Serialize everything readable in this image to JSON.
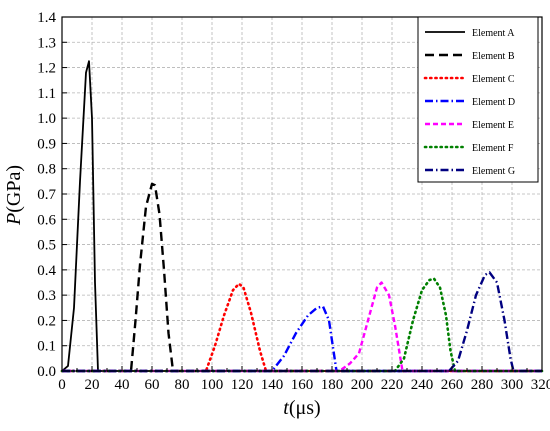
{
  "chart_data": {
    "type": "line",
    "xlabel": {
      "italic": "t",
      "unit": "(μs)"
    },
    "ylabel": {
      "italic": "P",
      "unit": "(GPa)"
    },
    "xlim": [
      0,
      320
    ],
    "ylim": [
      0,
      1.4
    ],
    "xticks": [
      "0",
      "20",
      "40",
      "60",
      "80",
      "100",
      "120",
      "140",
      "160",
      "180",
      "200",
      "220",
      "240",
      "260",
      "280",
      "300",
      "320"
    ],
    "yticks": [
      "0.0",
      "0.1",
      "0.2",
      "0.3",
      "0.4",
      "0.5",
      "0.6",
      "0.7",
      "0.8",
      "0.9",
      "1.0",
      "1.1",
      "1.2",
      "1.3",
      "1.4"
    ],
    "grid": true,
    "legend_position": "top-right",
    "series": [
      {
        "name": "Element A",
        "color": "#000000",
        "dash": "solid",
        "x": [
          0,
          4,
          8,
          12,
          16,
          18,
          20,
          22,
          24,
          320
        ],
        "y": [
          0,
          0.02,
          0.25,
          0.75,
          1.18,
          1.225,
          1.0,
          0.35,
          0,
          0
        ]
      },
      {
        "name": "Element B",
        "color": "#000000",
        "dash": "long-dash",
        "x": [
          0,
          46,
          49,
          52,
          56,
          60,
          62,
          65,
          68,
          71,
          74,
          320
        ],
        "y": [
          0,
          0,
          0.2,
          0.42,
          0.65,
          0.74,
          0.735,
          0.62,
          0.4,
          0.15,
          0,
          0
        ]
      },
      {
        "name": "Element C",
        "color": "#ff0000",
        "dash": "dotted",
        "x": [
          0,
          96,
          102,
          108,
          114,
          118,
          121,
          126,
          132,
          136,
          320
        ],
        "y": [
          0,
          0,
          0.1,
          0.22,
          0.32,
          0.345,
          0.33,
          0.23,
          0.08,
          0,
          0
        ]
      },
      {
        "name": "Element D",
        "color": "#0000ff",
        "dash": "dash-dot",
        "x": [
          0,
          140,
          148,
          156,
          164,
          170,
          174,
          178,
          181,
          183,
          320
        ],
        "y": [
          0,
          0,
          0.06,
          0.15,
          0.22,
          0.25,
          0.255,
          0.2,
          0.08,
          0,
          0
        ]
      },
      {
        "name": "Element E",
        "color": "#ff00ff",
        "dash": "dashed",
        "x": [
          0,
          185,
          192,
          198,
          204,
          210,
          213,
          218,
          222,
          227,
          320
        ],
        "y": [
          0,
          0,
          0.03,
          0.07,
          0.2,
          0.33,
          0.35,
          0.3,
          0.18,
          0,
          0
        ]
      },
      {
        "name": "Element F",
        "color": "#008000",
        "dash": "dotted",
        "x": [
          0,
          222,
          228,
          234,
          240,
          245,
          248,
          252,
          256,
          259,
          262,
          320
        ],
        "y": [
          0,
          0,
          0.05,
          0.2,
          0.32,
          0.36,
          0.365,
          0.33,
          0.22,
          0.08,
          0,
          0
        ]
      },
      {
        "name": "Element G",
        "color": "#000080",
        "dash": "dash-dot",
        "x": [
          0,
          258,
          264,
          270,
          276,
          282,
          285,
          290,
          295,
          299,
          301,
          320
        ],
        "y": [
          0,
          0,
          0.04,
          0.16,
          0.3,
          0.38,
          0.39,
          0.35,
          0.2,
          0.05,
          0,
          0
        ]
      }
    ]
  }
}
